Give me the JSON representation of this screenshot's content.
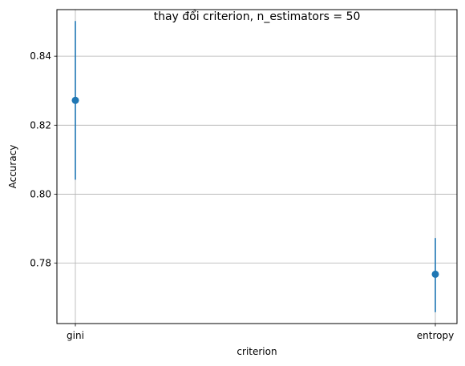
{
  "chart_data": {
    "type": "scatter",
    "title": "thay đổi criterion, n_estimators = 50",
    "xlabel": "criterion",
    "ylabel": "Accuracy",
    "categories": [
      "gini",
      "entropy"
    ],
    "series": [
      {
        "values": [
          0.8272,
          0.7768
        ],
        "error_low": [
          0.8042,
          0.7658
        ],
        "error_high": [
          0.8502,
          0.7873
        ],
        "color": "#1f77b4"
      }
    ],
    "yticks": [
      0.78,
      0.8,
      0.82,
      0.84
    ],
    "ytick_labels": [
      "0.78",
      "0.80",
      "0.82",
      "0.84"
    ],
    "ylim": [
      0.7625,
      0.8535
    ],
    "grid": true
  }
}
